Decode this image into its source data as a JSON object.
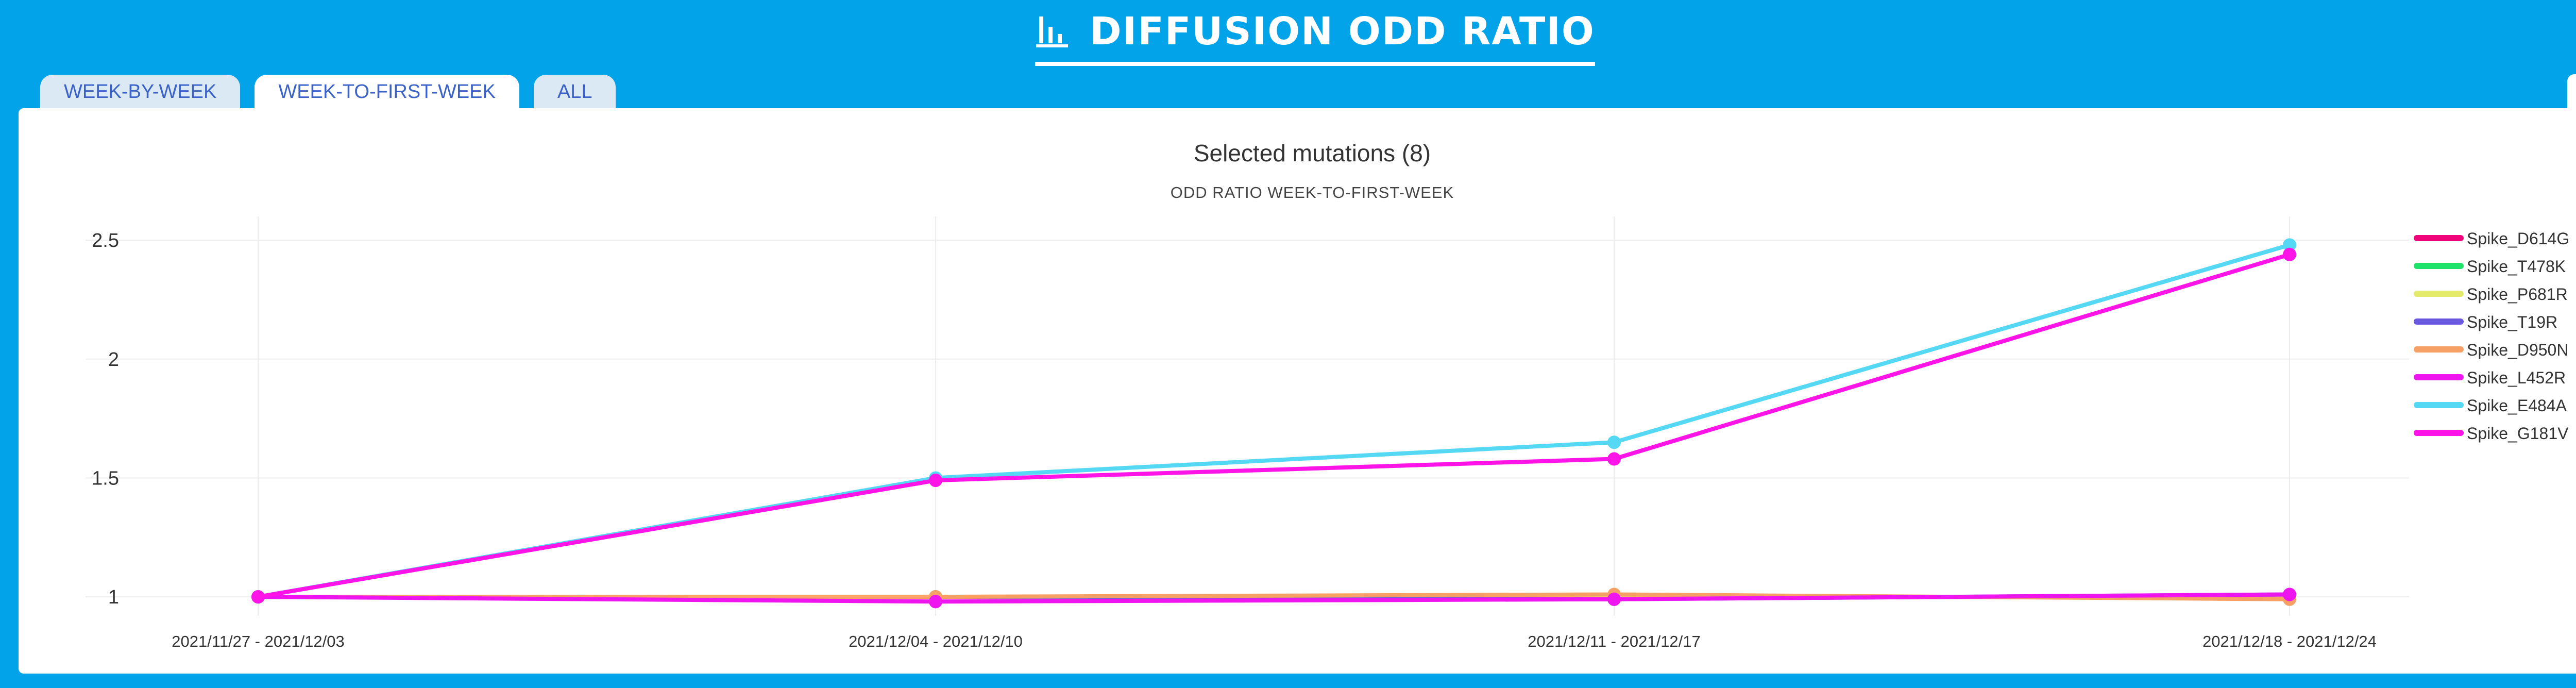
{
  "header": {
    "title": "DIFFUSION ODD RATIO",
    "icon": "bar-chart-icon"
  },
  "tabs": [
    {
      "label": "WEEK-BY-WEEK",
      "active": false
    },
    {
      "label": "WEEK-TO-FIRST-WEEK",
      "active": true
    },
    {
      "label": "ALL",
      "active": false
    }
  ],
  "collapse_button": {
    "icon": "collapse-arrows-icon"
  },
  "colors": {
    "background": "#02a3e9",
    "panel": "#ffffff",
    "tab_text": "#3a62c8"
  },
  "chart_data": {
    "type": "line",
    "title": "Selected mutations (8)",
    "subtitle": "ODD RATIO WEEK-TO-FIRST-WEEK",
    "xlabel": "",
    "ylabel": "",
    "categories": [
      "2021/11/27 - 2021/12/03",
      "2021/12/04 - 2021/12/10",
      "2021/12/11 - 2021/12/17",
      "2021/12/18 - 2021/12/24"
    ],
    "y_ticks": [
      "2.5",
      "2",
      "1.5",
      "1"
    ],
    "ylim": [
      0.92,
      2.6
    ],
    "grid": true,
    "legend_position": "right",
    "series": [
      {
        "name": "Spike_D614G",
        "color": "#f0057a",
        "values": [
          1.0,
          1.0,
          1.0,
          1.0
        ]
      },
      {
        "name": "Spike_T478K",
        "color": "#1de36b",
        "values": [
          1.0,
          1.0,
          1.0,
          1.0
        ]
      },
      {
        "name": "Spike_P681R",
        "color": "#e4ea6a",
        "values": [
          1.0,
          1.0,
          1.0,
          1.0
        ]
      },
      {
        "name": "Spike_T19R",
        "color": "#6b5ae0",
        "values": [
          1.0,
          1.0,
          0.99,
          1.01
        ]
      },
      {
        "name": "Spike_D950N",
        "color": "#f6a066",
        "values": [
          1.0,
          1.0,
          1.01,
          0.99
        ]
      },
      {
        "name": "Spike_L452R",
        "color": "#ee15ee",
        "values": [
          1.0,
          0.98,
          0.99,
          1.01
        ]
      },
      {
        "name": "Spike_E484A",
        "color": "#55d8f4",
        "values": [
          1.0,
          1.5,
          1.65,
          2.48
        ]
      },
      {
        "name": "Spike_G181V",
        "color": "#ff14e8",
        "values": [
          1.0,
          1.49,
          1.58,
          2.44
        ]
      }
    ]
  }
}
